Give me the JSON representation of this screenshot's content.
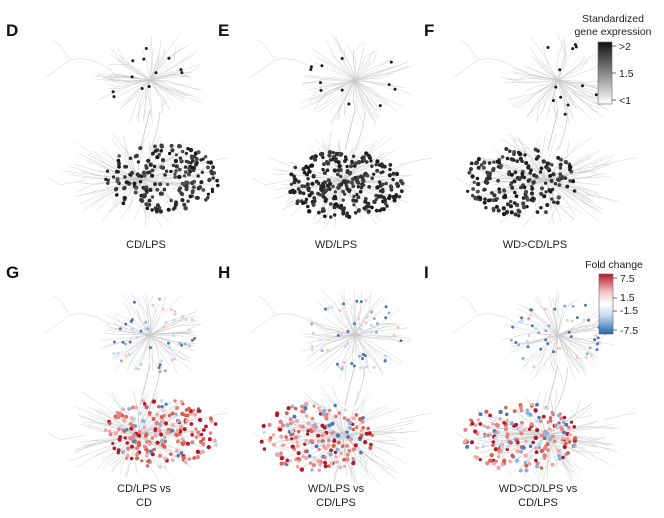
{
  "panels": [
    {
      "letter": "D",
      "caption": [
        "CD/LPS"
      ],
      "scheme": "gray",
      "focus": "bottom-right",
      "density": 0.55
    },
    {
      "letter": "E",
      "caption": [
        "WD/LPS"
      ],
      "scheme": "gray",
      "focus": "bottom",
      "density": 0.9
    },
    {
      "letter": "F",
      "caption": [
        "WD>CD/LPS"
      ],
      "scheme": "gray",
      "focus": "bottom-left",
      "density": 0.5
    },
    {
      "letter": "G",
      "caption": [
        "CD/LPS vs",
        "CD"
      ],
      "scheme": "fold",
      "focus": "bottom-right",
      "density": 0.6
    },
    {
      "letter": "H",
      "caption": [
        "WD/LPS vs",
        "CD/LPS"
      ],
      "scheme": "fold",
      "focus": "bottom-left",
      "density": 0.55
    },
    {
      "letter": "I",
      "caption": [
        "WD>CD/LPS vs",
        "CD/LPS"
      ],
      "scheme": "fold",
      "focus": "bottom-left",
      "density": 0.5
    }
  ],
  "legend_expression": {
    "title": [
      "Standardized",
      "gene expression"
    ],
    "ticks": [
      ">2",
      "1.5",
      "<1"
    ],
    "colors": [
      "#111111",
      "#ffffff"
    ]
  },
  "legend_fold": {
    "title": "Fold change",
    "ticks": [
      "7.5",
      "1.5",
      "-1.5",
      "-7.5"
    ],
    "colors": [
      "#b2182b",
      "#f4c5c5",
      "#ffffff",
      "#c6d7ec",
      "#2166ac"
    ]
  }
}
